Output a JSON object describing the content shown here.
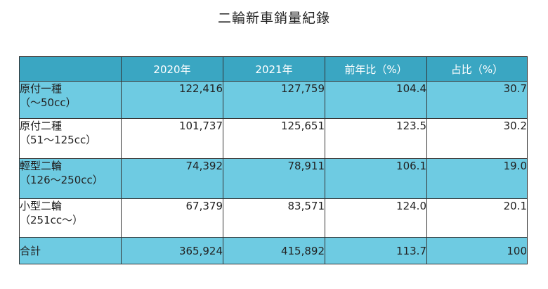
{
  "title": "二輪新車銷量紀錄",
  "table": {
    "headers": [
      "",
      "2020年",
      "2021年",
      "前年比（%）",
      "占比（%）"
    ],
    "rows": [
      {
        "label": "原付一種",
        "sublabel": "（～50cc）",
        "v2020": "122,416",
        "v2021": "127,759",
        "yoy": "104.4",
        "share": "30.7"
      },
      {
        "label": "原付二種",
        "sublabel": "（51～125cc）",
        "v2020": "101,737",
        "v2021": "125,651",
        "yoy": "123.5",
        "share": "30.2"
      },
      {
        "label": "輕型二輪",
        "sublabel": "（126～250cc）",
        "v2020": "74,392",
        "v2021": "78,911",
        "yoy": "106.1",
        "share": "19.0"
      },
      {
        "label": "小型二輪",
        "sublabel": "（251cc～）",
        "v2020": "67,379",
        "v2021": "83,571",
        "yoy": "124.0",
        "share": "20.1"
      }
    ],
    "total": {
      "label": "合計",
      "v2020": "365,924",
      "v2021": "415,892",
      "yoy": "113.7",
      "share": "100"
    }
  },
  "colors": {
    "header_bg": "#3aa6c2",
    "row_blue_bg": "#6ecbe2",
    "row_white_bg": "#ffffff",
    "border": "#333333"
  }
}
